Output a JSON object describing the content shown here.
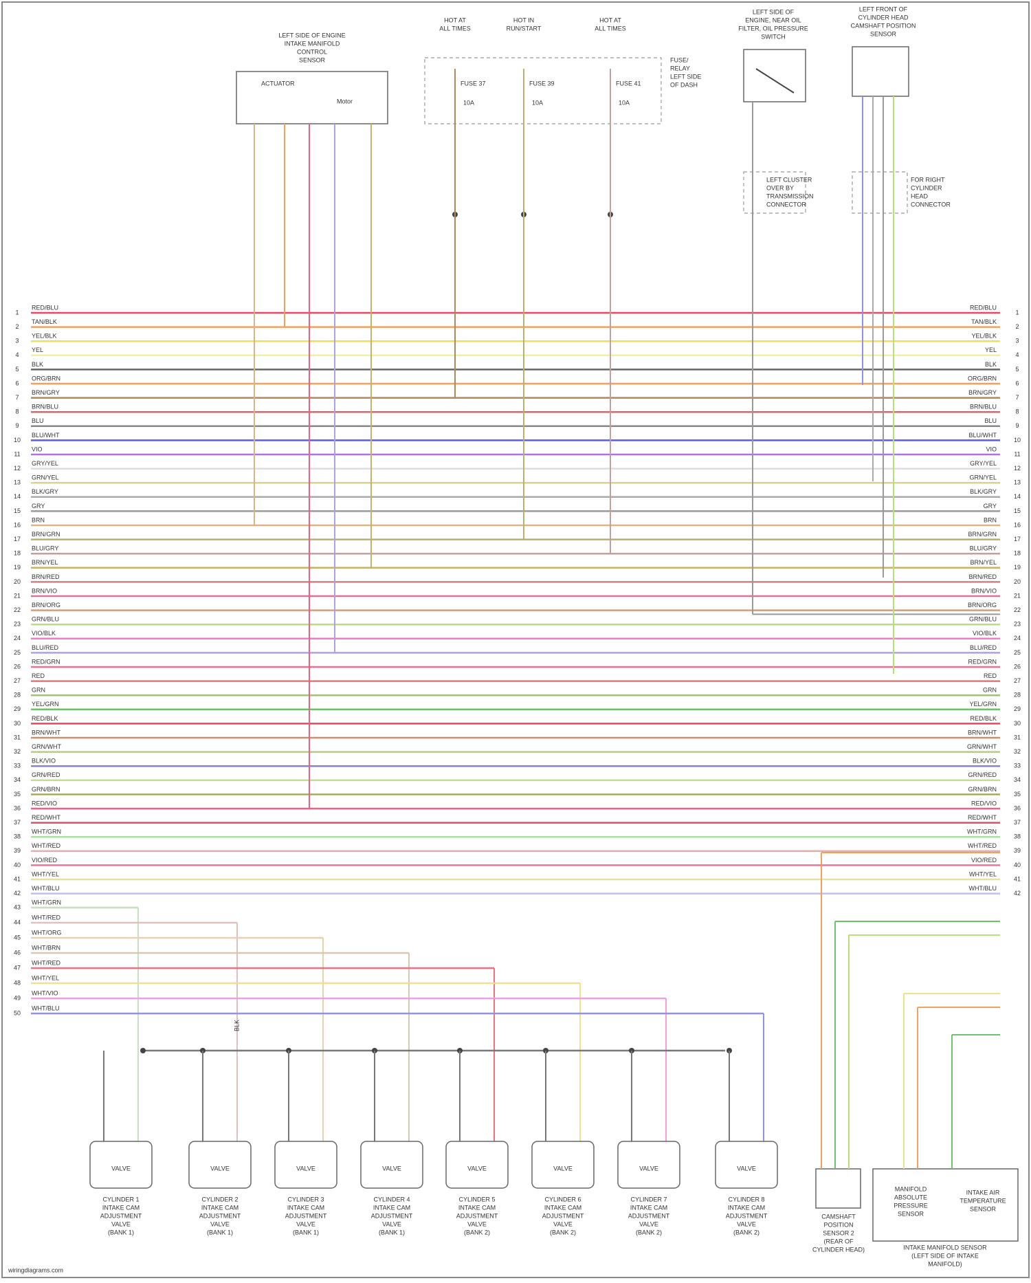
{
  "components": [
    {
      "lines": [
        "LEFT SIDE OF ENGINE",
        "INTAKE MANIFOLD",
        "CONTROL",
        "SENSOR"
      ]
    },
    {
      "lines": [
        "HOT AT",
        "ALL TIMES"
      ]
    },
    {
      "lines": [
        "HOT IN",
        "RUN/START"
      ]
    },
    {
      "lines": [
        "HOT AT",
        "ALL TIMES"
      ]
    },
    {
      "lines": [
        "FUSE/",
        "RELAY",
        "LEFT SIDE",
        "OF DASH"
      ]
    },
    {
      "lines": [
        "LEFT SIDE OF",
        "ENGINE, NEAR OIL",
        "FILTER, OIL PRESSURE",
        "SWITCH"
      ]
    },
    {
      "lines": [
        "LEFT FRONT OF",
        "CYLINDER HEAD",
        "CAMSHAFT POSITION",
        "SENSOR"
      ]
    },
    {
      "lines": [
        "LEFT CLUSTER",
        "OVER BY",
        "TRANSMISSION",
        "CONNECTOR"
      ]
    },
    {
      "lines": [
        "FOR RIGHT",
        "CYLINDER",
        "HEAD",
        "CONNECTOR"
      ]
    }
  ],
  "fuses": [
    {
      "name": "FUSE 37",
      "rating": "10A"
    },
    {
      "name": "FUSE 39",
      "rating": "10A"
    },
    {
      "name": "FUSE 41",
      "rating": "10A"
    }
  ],
  "box_texts": {
    "actuator": "ACTUATOR",
    "motor": "Motor"
  },
  "wires": [
    {
      "pin_l": "1",
      "pin_r": "1",
      "label": "RED/BLU",
      "color": "#e8485a"
    },
    {
      "pin_l": "2",
      "pin_r": "2",
      "label": "TAN/BLK",
      "color": "#f5a05a"
    },
    {
      "pin_l": "3",
      "pin_r": "3",
      "label": "YEL/BLK",
      "color": "#eedd55"
    },
    {
      "pin_l": "4",
      "pin_r": "4",
      "label": "YEL",
      "color": "#f3ef9a"
    },
    {
      "pin_l": "5",
      "pin_r": "5",
      "label": "BLK",
      "color": "#666666"
    },
    {
      "pin_l": "6",
      "pin_r": "6",
      "label": "ORG/BRN",
      "color": "#f5a05a"
    },
    {
      "pin_l": "7",
      "pin_r": "7",
      "label": "BRN/GRY",
      "color": "#b08860"
    },
    {
      "pin_l": "8",
      "pin_r": "8",
      "label": "BRN/BLU",
      "color": "#c07070"
    },
    {
      "pin_l": "9",
      "pin_r": "9",
      "label": "BLU",
      "color": "#888888"
    },
    {
      "pin_l": "10",
      "pin_r": "10",
      "label": "BLU/WHT",
      "color": "#5a5ae8"
    },
    {
      "pin_l": "11",
      "pin_r": "11",
      "label": "VIO",
      "color": "#b070e0"
    },
    {
      "pin_l": "12",
      "pin_r": "12",
      "label": "GRY/YEL",
      "color": "#dddddd"
    },
    {
      "pin_l": "13",
      "pin_r": "13",
      "label": "GRN/YEL",
      "color": "#d9d48a"
    },
    {
      "pin_l": "14",
      "pin_r": "14",
      "label": "BLK/GRY",
      "color": "#aaaaaa"
    },
    {
      "pin_l": "15",
      "pin_r": "15",
      "label": "GRY",
      "color": "#999999"
    },
    {
      "pin_l": "16",
      "pin_r": "16",
      "label": "BRN",
      "color": "#d9b48a"
    },
    {
      "pin_l": "17",
      "pin_r": "17",
      "label": "BRN/GRN",
      "color": "#b8b070"
    },
    {
      "pin_l": "18",
      "pin_r": "18",
      "label": "BLU/GRY",
      "color": "#c0a0a0"
    },
    {
      "pin_l": "19",
      "pin_r": "19",
      "label": "BRN/YEL",
      "color": "#c8b068"
    },
    {
      "pin_l": "20",
      "pin_r": "20",
      "label": "BRN/RED",
      "color": "#d08080"
    },
    {
      "pin_l": "21",
      "pin_r": "21",
      "label": "BRN/VIO",
      "color": "#e07090"
    },
    {
      "pin_l": "22",
      "pin_r": "22",
      "label": "BRN/ORG",
      "color": "#d0a080"
    },
    {
      "pin_l": "23",
      "pin_r": "23",
      "label": "GRN/BLU",
      "color": "#b8e07a"
    },
    {
      "pin_l": "24",
      "pin_r": "24",
      "label": "VIO/BLK",
      "color": "#f07ad0"
    },
    {
      "pin_l": "25",
      "pin_r": "25",
      "label": "BLU/RED",
      "color": "#b0a0e0"
    },
    {
      "pin_l": "26",
      "pin_r": "26",
      "label": "RED/GRN",
      "color": "#f07090"
    },
    {
      "pin_l": "27",
      "pin_r": "27",
      "label": "RED",
      "color": "#e07878"
    },
    {
      "pin_l": "28",
      "pin_r": "28",
      "label": "GRN",
      "color": "#a0c080"
    },
    {
      "pin_l": "29",
      "pin_r": "29",
      "label": "YEL/GRN",
      "color": "#6cc36c"
    },
    {
      "pin_l": "30",
      "pin_r": "30",
      "label": "RED/BLK",
      "color": "#e8485a"
    },
    {
      "pin_l": "31",
      "pin_r": "31",
      "label": "BRN/WHT",
      "color": "#c89070"
    },
    {
      "pin_l": "32",
      "pin_r": "32",
      "label": "GRN/WHT",
      "color": "#b8c890"
    },
    {
      "pin_l": "33",
      "pin_r": "33",
      "label": "BLK/VIO",
      "color": "#9080c0"
    },
    {
      "pin_l": "34",
      "pin_r": "34",
      "label": "GRN/RED",
      "color": "#c0e090"
    },
    {
      "pin_l": "35",
      "pin_r": "35",
      "label": "GRN/BRN",
      "color": "#a8a860"
    },
    {
      "pin_l": "36",
      "pin_r": "36",
      "label": "RED/VIO",
      "color": "#f06080"
    },
    {
      "pin_l": "37",
      "pin_r": "37",
      "label": "RED/WHT",
      "color": "#e05060"
    },
    {
      "pin_l": "38",
      "pin_r": "38",
      "label": "WHT/GRN",
      "color": "#a8e0a0"
    },
    {
      "pin_l": "39",
      "pin_r": "39",
      "label": "WHT/RED",
      "color": "#e0b0b0"
    },
    {
      "pin_l": "40",
      "pin_r": "40",
      "label": "VIO/RED",
      "color": "#f070a0"
    },
    {
      "pin_l": "41",
      "pin_r": "41",
      "label": "WHT/YEL",
      "color": "#e8e0a0"
    },
    {
      "pin_l": "42",
      "pin_r": "42",
      "label": "WHT/BLU",
      "color": "#c0c0f0"
    },
    {
      "pin_l": "43",
      "label": "WHT/GRN",
      "color": "#c8e0c0"
    },
    {
      "pin_l": "44",
      "label": "WHT/RED",
      "color": "#e0c0c0"
    },
    {
      "pin_l": "45",
      "label": "WHT/ORG",
      "color": "#e8d0b0"
    },
    {
      "pin_l": "46",
      "label": "WHT/BRN",
      "color": "#d8c8b0"
    },
    {
      "pin_l": "47",
      "label": "WHT/RED",
      "color": "#f07080"
    },
    {
      "pin_l": "48",
      "label": "WHT/YEL",
      "color": "#f0e090"
    },
    {
      "pin_l": "49",
      "label": "WHT/VIO",
      "color": "#f0a0e0"
    },
    {
      "pin_l": "50",
      "label": "WHT/BLU",
      "color": "#9090f0"
    }
  ],
  "ground_label": "BLK",
  "actuators": [
    {
      "lines": [
        "CYLINDER 1",
        "INTAKE CAM",
        "ADJUSTMENT",
        "VALVE",
        "(BANK 1)"
      ]
    },
    {
      "lines": [
        "CYLINDER 2",
        "INTAKE CAM",
        "ADJUSTMENT",
        "VALVE",
        "(BANK 1)"
      ]
    },
    {
      "lines": [
        "CYLINDER 3",
        "INTAKE CAM",
        "ADJUSTMENT",
        "VALVE",
        "(BANK 1)"
      ]
    },
    {
      "lines": [
        "CYLINDER 4",
        "INTAKE CAM",
        "ADJUSTMENT",
        "VALVE",
        "(BANK 1)"
      ]
    },
    {
      "lines": [
        "CYLINDER 5",
        "INTAKE CAM",
        "ADJUSTMENT",
        "VALVE",
        "(BANK 2)"
      ]
    },
    {
      "lines": [
        "CYLINDER 6",
        "INTAKE CAM",
        "ADJUSTMENT",
        "VALVE",
        "(BANK 2)"
      ]
    },
    {
      "lines": [
        "CYLINDER 7",
        "INTAKE CAM",
        "ADJUSTMENT",
        "VALVE",
        "(BANK 2)"
      ]
    },
    {
      "lines": [
        "CYLINDER 8",
        "INTAKE CAM",
        "ADJUSTMENT",
        "VALVE",
        "(BANK 2)"
      ]
    }
  ],
  "actuator_box_text": "VALVE",
  "sensors": [
    {
      "lines": [
        "CAMSHAFT",
        "POSITION",
        "SENSOR 2",
        "(REAR OF",
        "CYLINDER HEAD)"
      ]
    },
    {
      "lines": [
        "MANIFOLD",
        "ABSOLUTE",
        "PRESSURE",
        "SENSOR"
      ]
    },
    {
      "lines": [
        "INTAKE AIR",
        "TEMPERATURE",
        "SENSOR"
      ]
    }
  ],
  "sensor_footer": {
    "lines": [
      "INTAKE MANIFOLD SENSOR",
      "(LEFT SIDE OF INTAKE",
      "MANIFOLD)"
    ]
  },
  "footer": "wiringdiagrams.com"
}
